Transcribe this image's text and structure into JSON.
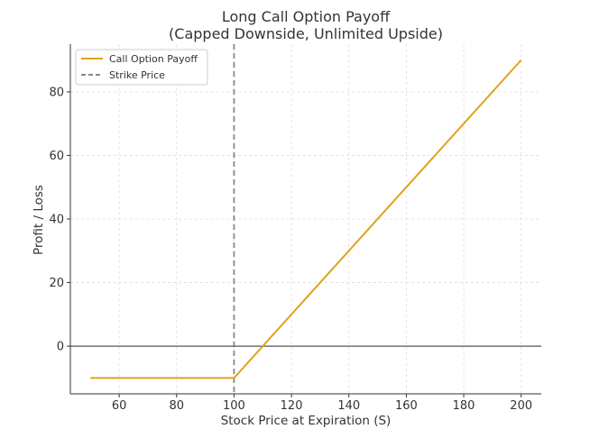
{
  "chart_data": {
    "type": "line",
    "title": "Long Call Option Payoff",
    "subtitle": "(Capped Downside, Unlimited Upside)",
    "xlabel": "Stock Price at Expiration (S)",
    "ylabel": "Profit / Loss",
    "xlim": [
      43,
      207
    ],
    "ylim": [
      -15,
      95
    ],
    "xticks": [
      60,
      80,
      100,
      120,
      140,
      160,
      180,
      200
    ],
    "yticks": [
      0,
      20,
      40,
      60,
      80
    ],
    "grid": true,
    "legend_position": "upper-left",
    "series": [
      {
        "name": "Call Option Payoff",
        "color": "#e0a21b",
        "style": "solid",
        "points": [
          [
            50,
            -10
          ],
          [
            100,
            -10
          ],
          [
            200,
            90
          ]
        ]
      }
    ],
    "reference_lines": [
      {
        "name": "Strike Price",
        "orientation": "vertical",
        "value": 100,
        "color": "#888888",
        "style": "dashed"
      },
      {
        "orientation": "horizontal",
        "value": 0,
        "color": "#555555",
        "style": "solid"
      }
    ]
  }
}
